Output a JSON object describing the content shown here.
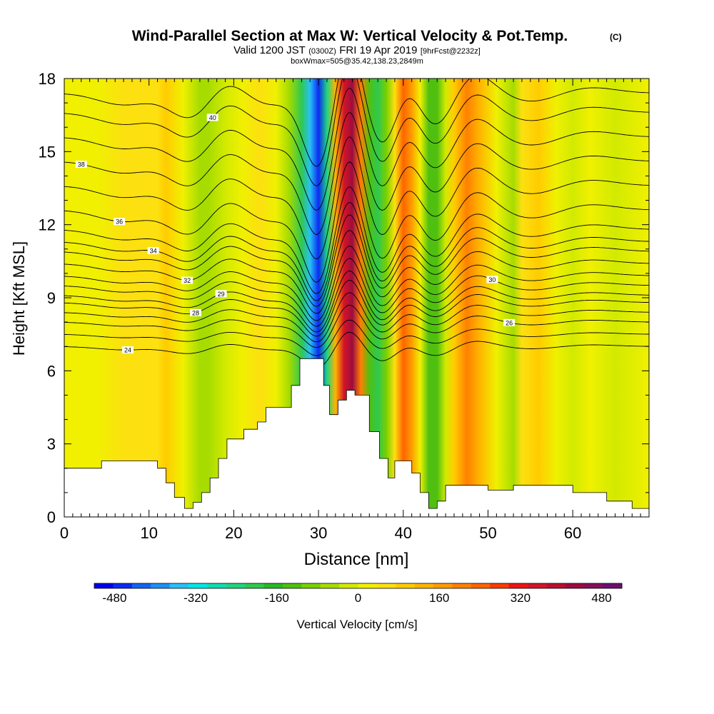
{
  "chart_data": {
    "type": "heatmap",
    "title": "Wind-Parallel Section at Max W: Vertical Velocity & Pot.Temp.",
    "title_tag": "(C)",
    "subtitle_main": "Valid 1200 JST",
    "subtitle_utc": "(0300Z)",
    "subtitle_date": "FRI 19 Apr 2019",
    "subtitle_fcst": "[9hrFcst@2232z]",
    "subtitle2": "boxWmax=505@35.42,138.23,2849m",
    "xlabel": "Distance [nm]",
    "ylabel": "Height [Kft MSL]",
    "xlim": [
      0,
      69
    ],
    "ylim": [
      0,
      18
    ],
    "x_ticks": [
      "0",
      "10",
      "20",
      "30",
      "40",
      "50",
      "60"
    ],
    "x_tick_values": [
      0,
      10,
      20,
      30,
      40,
      50,
      60
    ],
    "y_ticks": [
      "0",
      "3",
      "6",
      "9",
      "12",
      "15",
      "18"
    ],
    "y_tick_values": [
      0,
      3,
      6,
      9,
      12,
      15,
      18
    ],
    "colorbar": {
      "label": "Vertical Velocity [cm/s]",
      "range": [
        -520,
        520
      ],
      "tick_labels": [
        "-480",
        "-320",
        "-160",
        "0",
        "160",
        "320",
        "480"
      ],
      "tick_values": [
        -480,
        -320,
        -160,
        0,
        160,
        320,
        480
      ],
      "colors": [
        "#0000ee",
        "#0a2cf0",
        "#1464f2",
        "#1e90f4",
        "#28c0f6",
        "#00e6e6",
        "#10dcb0",
        "#20d480",
        "#30c850",
        "#28b828",
        "#50c010",
        "#78d000",
        "#a6dc00",
        "#d2ea00",
        "#f0f000",
        "#fce010",
        "#ffcc00",
        "#ffb400",
        "#ff9c00",
        "#ff8000",
        "#ff6400",
        "#f83c00",
        "#ee1414",
        "#d41426",
        "#b8102e",
        "#9c0c40",
        "#84105a",
        "#6c1070"
      ]
    },
    "velocity_columns": [
      {
        "x": 0,
        "w": 10
      },
      {
        "x": 4,
        "w": 15
      },
      {
        "x": 7,
        "w": 40
      },
      {
        "x": 9,
        "w": 50
      },
      {
        "x": 11,
        "w": 60
      },
      {
        "x": 12,
        "w": 110
      },
      {
        "x": 14,
        "w": 25
      },
      {
        "x": 16,
        "w": -45
      },
      {
        "x": 17,
        "w": -70
      },
      {
        "x": 19,
        "w": -30
      },
      {
        "x": 21,
        "w": 15
      },
      {
        "x": 23,
        "w": 55
      },
      {
        "x": 25,
        "w": 20
      },
      {
        "x": 26.5,
        "w": -50
      },
      {
        "x": 28,
        "w": -200
      },
      {
        "x": 29,
        "w": -340
      },
      {
        "x": 30,
        "w": -450
      },
      {
        "x": 31,
        "w": -240
      },
      {
        "x": 32,
        "w": 120
      },
      {
        "x": 33,
        "w": 360
      },
      {
        "x": 34,
        "w": 430
      },
      {
        "x": 35,
        "w": 200
      },
      {
        "x": 36,
        "w": -130
      },
      {
        "x": 37,
        "w": -210
      },
      {
        "x": 38,
        "w": -90
      },
      {
        "x": 39,
        "w": 60
      },
      {
        "x": 40,
        "w": 250
      },
      {
        "x": 41,
        "w": 170
      },
      {
        "x": 42,
        "w": 20
      },
      {
        "x": 43,
        "w": -140
      },
      {
        "x": 44,
        "w": -120
      },
      {
        "x": 45,
        "w": -20
      },
      {
        "x": 46,
        "w": 90
      },
      {
        "x": 47.5,
        "w": 190
      },
      {
        "x": 49,
        "w": 130
      },
      {
        "x": 51,
        "w": 20
      },
      {
        "x": 53,
        "w": -40
      },
      {
        "x": 54,
        "w": 40
      },
      {
        "x": 56,
        "w": 110
      },
      {
        "x": 58,
        "w": 20
      },
      {
        "x": 60,
        "w": -20
      },
      {
        "x": 62,
        "w": 10
      },
      {
        "x": 65,
        "w": -5
      },
      {
        "x": 69,
        "w": 0
      }
    ],
    "terrain_kft": [
      [
        0,
        2.0
      ],
      [
        4.4,
        2.0
      ],
      [
        4.4,
        2.3
      ],
      [
        11.0,
        2.3
      ],
      [
        11.0,
        2.0
      ],
      [
        12.0,
        2.0
      ],
      [
        12.0,
        1.4
      ],
      [
        13.0,
        1.4
      ],
      [
        13.0,
        0.8
      ],
      [
        14.2,
        0.8
      ],
      [
        14.2,
        0.35
      ],
      [
        15.2,
        0.35
      ],
      [
        15.2,
        0.6
      ],
      [
        16.2,
        0.6
      ],
      [
        16.2,
        1.0
      ],
      [
        17.2,
        1.0
      ],
      [
        17.2,
        1.6
      ],
      [
        18.2,
        1.6
      ],
      [
        18.2,
        2.4
      ],
      [
        19.2,
        2.4
      ],
      [
        19.2,
        3.2
      ],
      [
        21.2,
        3.2
      ],
      [
        21.2,
        3.6
      ],
      [
        22.8,
        3.6
      ],
      [
        22.8,
        3.9
      ],
      [
        23.8,
        3.9
      ],
      [
        23.8,
        4.5
      ],
      [
        26.8,
        4.5
      ],
      [
        26.8,
        5.4
      ],
      [
        27.8,
        5.4
      ],
      [
        27.8,
        6.5
      ],
      [
        30.6,
        6.5
      ],
      [
        30.6,
        5.4
      ],
      [
        31.3,
        5.4
      ],
      [
        31.3,
        4.2
      ],
      [
        32.3,
        4.2
      ],
      [
        32.3,
        4.8
      ],
      [
        33.3,
        4.8
      ],
      [
        33.3,
        5.2
      ],
      [
        34.3,
        5.2
      ],
      [
        34.3,
        5.0
      ],
      [
        36.0,
        5.0
      ],
      [
        36.0,
        3.5
      ],
      [
        37.2,
        3.5
      ],
      [
        37.2,
        2.4
      ],
      [
        38.2,
        2.4
      ],
      [
        38.2,
        1.6
      ],
      [
        39.0,
        1.6
      ],
      [
        39.0,
        2.3
      ],
      [
        41.0,
        2.3
      ],
      [
        41.0,
        1.8
      ],
      [
        42.0,
        1.8
      ],
      [
        42.0,
        1.0
      ],
      [
        43.0,
        1.0
      ],
      [
        43.0,
        0.35
      ],
      [
        44.0,
        0.35
      ],
      [
        44.0,
        0.65
      ],
      [
        45.0,
        0.65
      ],
      [
        45.0,
        1.3
      ],
      [
        50.0,
        1.3
      ],
      [
        50.0,
        1.1
      ],
      [
        53.0,
        1.1
      ],
      [
        53.0,
        1.3
      ],
      [
        60.0,
        1.3
      ],
      [
        60.0,
        1.0
      ],
      [
        64.0,
        1.0
      ],
      [
        64.0,
        0.65
      ],
      [
        67.0,
        0.65
      ],
      [
        67.0,
        0.35
      ],
      [
        69.0,
        0.35
      ]
    ],
    "theta_levels": [
      {
        "value": 24,
        "base_kft": 7.0,
        "label_x": 7.5
      },
      {
        "value": 25,
        "base_kft": 7.5
      },
      {
        "value": 26,
        "base_kft": 8.0,
        "label_x": 52.5
      },
      {
        "value": 27,
        "base_kft": 8.4
      },
      {
        "value": 28,
        "base_kft": 8.8,
        "label_x": 15.5
      },
      {
        "value": 29,
        "base_kft": 9.1,
        "label_x": 18.5
      },
      {
        "value": 30,
        "base_kft": 9.5,
        "label_x": 50.5
      },
      {
        "value": 31,
        "base_kft": 9.9
      },
      {
        "value": 32,
        "base_kft": 10.4,
        "label_x": 14.5
      },
      {
        "value": 33,
        "base_kft": 10.9
      },
      {
        "value": 34,
        "base_kft": 11.3,
        "label_x": 10.5
      },
      {
        "value": 35,
        "base_kft": 11.8
      },
      {
        "value": 36,
        "base_kft": 12.6,
        "label_x": 6.5
      },
      {
        "value": 37,
        "base_kft": 13.6
      },
      {
        "value": 38,
        "base_kft": 14.6,
        "label_x": 2.0
      },
      {
        "value": 39,
        "base_kft": 15.6
      },
      {
        "value": 40,
        "base_kft": 16.6,
        "label_x": 17.5
      },
      {
        "value": 41,
        "base_kft": 17.4
      }
    ]
  }
}
